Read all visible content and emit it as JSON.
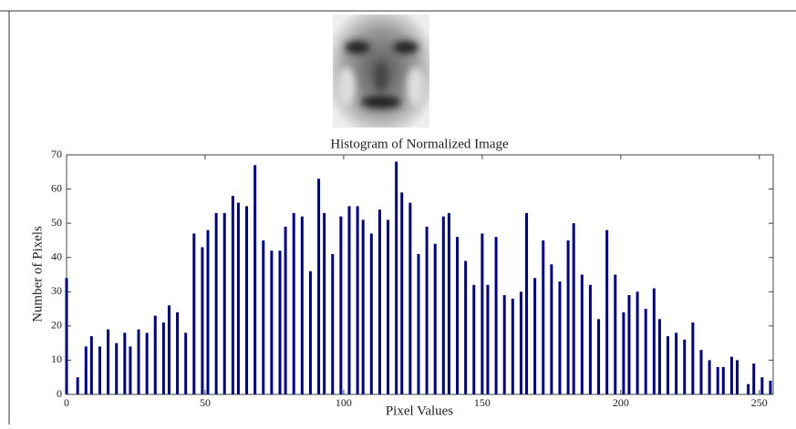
{
  "chart_data": {
    "type": "bar",
    "title": "Histogram of Normalized Image",
    "x_label": "Pixel Values",
    "y_label": "Number of Pixels",
    "color": "#00008b",
    "x": [
      0,
      4,
      7,
      9,
      12,
      15,
      18,
      21,
      23,
      26,
      29,
      32,
      35,
      37,
      40,
      43,
      46,
      49,
      51,
      54,
      57,
      60,
      62,
      65,
      68,
      71,
      74,
      77,
      79,
      82,
      85,
      88,
      91,
      93,
      96,
      99,
      102,
      105,
      107,
      110,
      113,
      116,
      119,
      121,
      124,
      127,
      130,
      133,
      136,
      138,
      141,
      144,
      147,
      150,
      152,
      155,
      158,
      161,
      164,
      166,
      169,
      172,
      175,
      178,
      181,
      183,
      186,
      189,
      192,
      195,
      198,
      201,
      203,
      206,
      209,
      212,
      214,
      217,
      220,
      223,
      226,
      229,
      232,
      235,
      237,
      240,
      242,
      246,
      248,
      251,
      254
    ],
    "values": [
      34,
      5,
      14,
      17,
      14,
      19,
      15,
      18,
      14,
      19,
      18,
      23,
      21,
      26,
      24,
      18,
      47,
      43,
      48,
      53,
      53,
      58,
      56,
      55,
      67,
      45,
      42,
      42,
      49,
      53,
      52,
      36,
      63,
      53,
      41,
      52,
      55,
      55,
      51,
      47,
      54,
      51,
      68,
      59,
      56,
      41,
      49,
      44,
      52,
      53,
      46,
      39,
      32,
      47,
      32,
      46,
      29,
      28,
      30,
      53,
      34,
      45,
      38,
      33,
      45,
      50,
      35,
      32,
      22,
      48,
      35,
      24,
      29,
      30,
      25,
      31,
      22,
      17,
      18,
      16,
      21,
      13,
      10,
      8,
      8,
      11,
      10,
      3,
      9,
      5,
      4
    ],
    "xlim": [
      0,
      255
    ],
    "ylim": [
      0,
      70
    ],
    "xticks": [
      0,
      50,
      100,
      150,
      200,
      250
    ],
    "yticks": [
      0,
      10,
      20,
      30,
      40,
      50,
      60,
      70
    ]
  }
}
